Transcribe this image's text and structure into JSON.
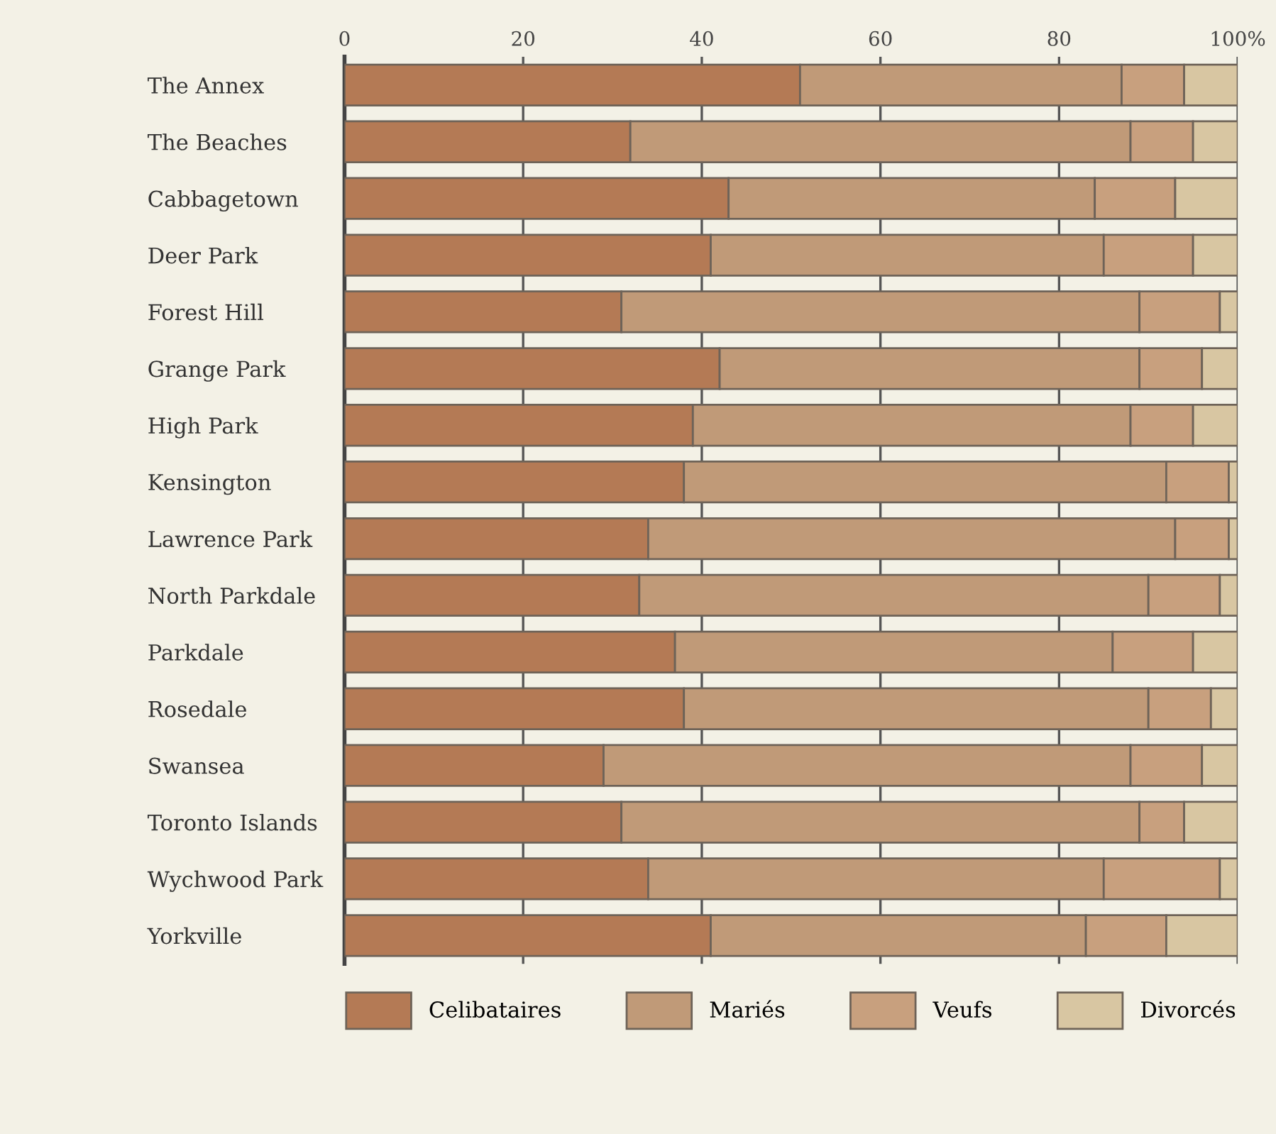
{
  "chart_data": {
    "type": "bar",
    "orientation": "horizontal",
    "stacked": true,
    "categories": [
      "The Annex",
      "The Beaches",
      "Cabbagetown",
      "Deer Park",
      "Forest Hill",
      "Grange Park",
      "High Park",
      "Kensington",
      "Lawrence Park",
      "North Parkdale",
      "Parkdale",
      "Rosedale",
      "Swansea",
      "Toronto Islands",
      "Wychwood Park",
      "Yorkville"
    ],
    "series": [
      {
        "name": "Celibataires",
        "color": "#b47a55",
        "values": [
          51,
          32,
          43,
          41,
          31,
          42,
          39,
          38,
          34,
          33,
          37,
          38,
          29,
          31,
          34,
          41
        ]
      },
      {
        "name": "Mariés",
        "color": "#c09a78",
        "values": [
          36,
          56,
          41,
          44,
          58,
          47,
          49,
          54,
          59,
          57,
          49,
          52,
          59,
          58,
          51,
          42
        ]
      },
      {
        "name": "Veufs",
        "color": "#c8a07e",
        "values": [
          7,
          7,
          9,
          10,
          9,
          7,
          7,
          7,
          6,
          8,
          9,
          7,
          8,
          5,
          13,
          9
        ]
      },
      {
        "name": "Divorcés",
        "color": "#d8c6a2",
        "values": [
          6,
          5,
          7,
          5,
          2,
          4,
          5,
          1,
          1,
          2,
          5,
          3,
          4,
          6,
          2,
          8
        ]
      }
    ],
    "xlim": [
      0,
      100
    ],
    "xticks": [
      0,
      20,
      40,
      60,
      80,
      {
        "value": 100,
        "label": "100%"
      }
    ],
    "grid": "x",
    "legend": "bottom"
  }
}
